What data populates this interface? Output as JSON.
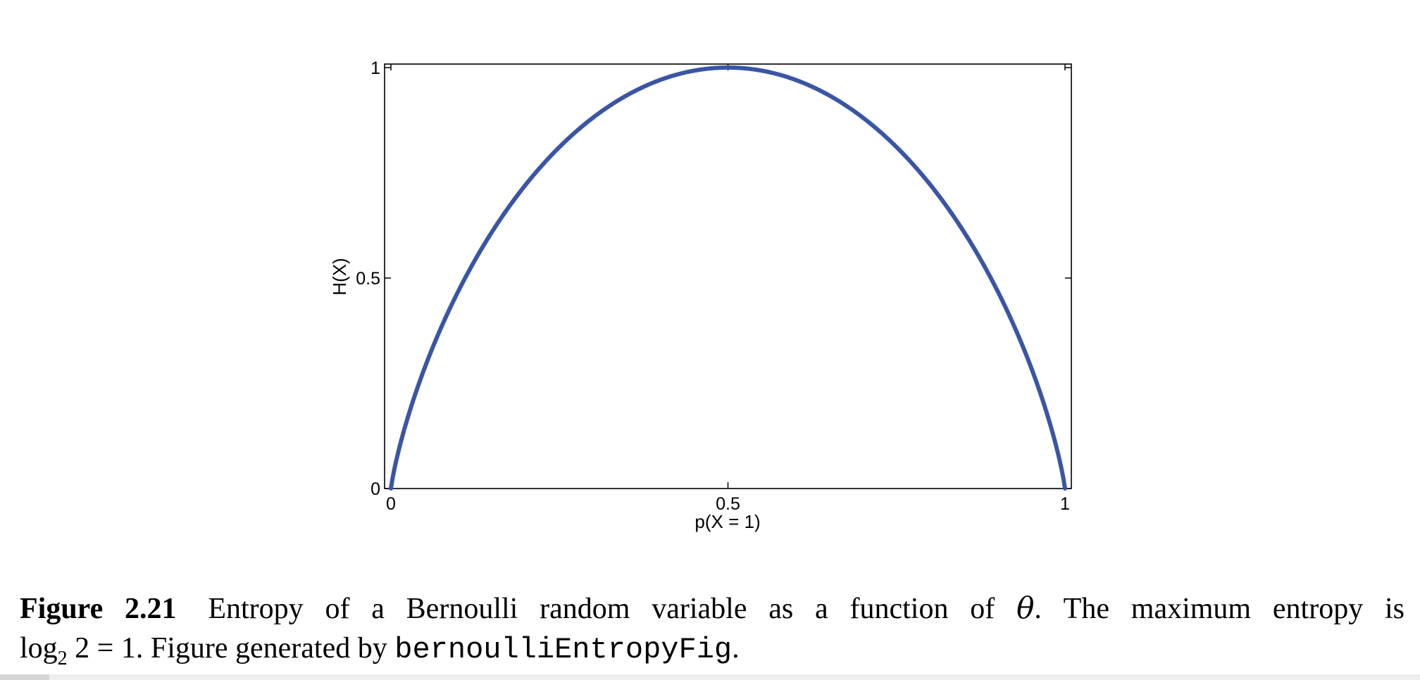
{
  "chart_data": {
    "type": "line",
    "title": "",
    "xlabel": "p(X = 1)",
    "ylabel": "H(X)",
    "xlim": [
      0,
      1
    ],
    "ylim": [
      0,
      1
    ],
    "x_ticks": [
      0,
      0.5,
      1
    ],
    "x_tick_labels": [
      "0",
      "0.5",
      "1"
    ],
    "y_ticks": [
      0,
      0.5,
      1
    ],
    "y_tick_labels": [
      "0",
      "0.5",
      "1"
    ],
    "grid": false,
    "legend": "none",
    "series": [
      {
        "color": "#3a55a4",
        "x": [
          0.01,
          0.02,
          0.05,
          0.1,
          0.15,
          0.2,
          0.25,
          0.3,
          0.35,
          0.4,
          0.45,
          0.5,
          0.55,
          0.6,
          0.65,
          0.7,
          0.75,
          0.8,
          0.85,
          0.9,
          0.95,
          0.98,
          0.99
        ],
        "y": [
          0.081,
          0.141,
          0.286,
          0.469,
          0.61,
          0.722,
          0.811,
          0.881,
          0.934,
          0.971,
          0.993,
          1.0,
          0.993,
          0.971,
          0.934,
          0.881,
          0.811,
          0.722,
          0.61,
          0.469,
          0.286,
          0.141,
          0.081
        ]
      }
    ]
  },
  "caption": {
    "label": "Figure 2.21",
    "text_before_theta": "Entropy of a Bernoulli random variable as a function of",
    "theta": "θ",
    "text_after_theta": ". The maximum entropy is",
    "log": "log",
    "log_base": "2",
    "log_arg": "2 = 1",
    "text_mid": ". Figure generated by",
    "code": "bernoulliEntropyFig",
    "text_end": "."
  }
}
